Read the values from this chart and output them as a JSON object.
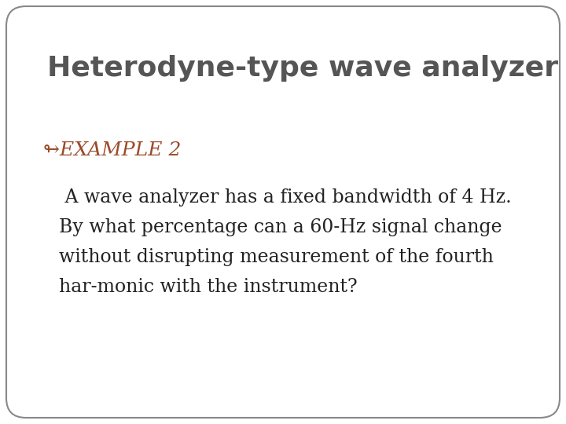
{
  "title": "Heterodyne-type wave analyzer",
  "title_color": "#555555",
  "title_fontsize": 26,
  "example_label": "༽EXAMPLE 2",
  "example_symbol": "↬",
  "example_color": "#9B4B2A",
  "example_fontsize": 18,
  "body_lines": [
    " A wave analyzer has a fixed bandwidth of 4 Hz.",
    "By what percentage can a 60-Hz signal change",
    "without disrupting measurement of the fourth",
    "har-monic with the instrument?"
  ],
  "body_color": "#222222",
  "body_fontsize": 17,
  "background_color": "#ffffff",
  "border_color": "#888888",
  "fig_bg_color": "#ffffff"
}
